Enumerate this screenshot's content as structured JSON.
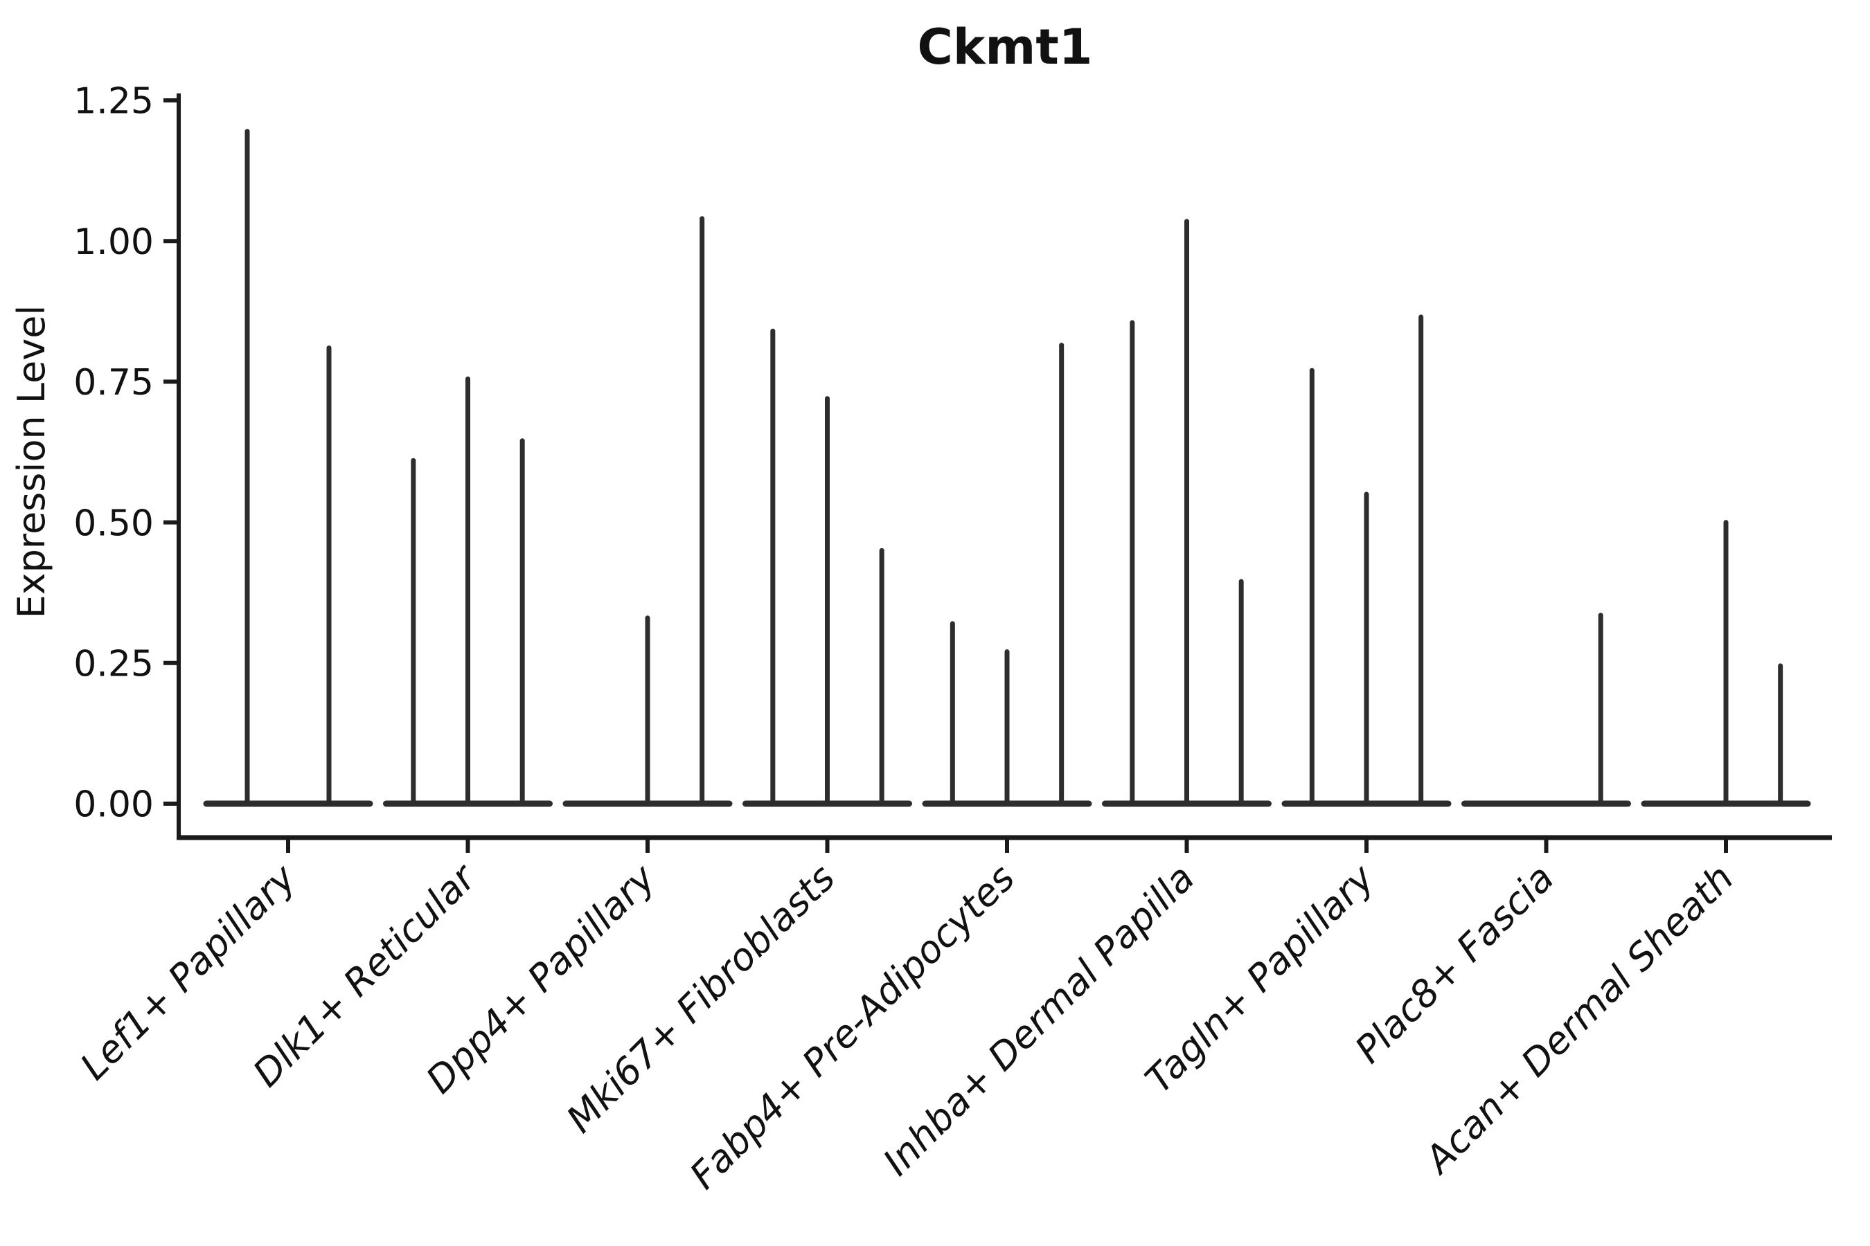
{
  "chart_data": {
    "type": "violin",
    "title": "Ckmt1",
    "ylabel": "Expression Level",
    "xlabel": "",
    "ylim": [
      0,
      1.25
    ],
    "ytick_step": 0.25,
    "yticks": [
      "0.00",
      "0.25",
      "0.50",
      "0.75",
      "1.00",
      "1.25"
    ],
    "grid": false,
    "legend": "none",
    "ink_color": "#1a1a1a",
    "violin_color": "#2d2d2d",
    "categories": [
      "Lef1+ Papillary",
      "Dlk1+ Reticular",
      "Dpp4+ Papillary",
      "Mki67+ Fibroblasts",
      "Fabp4+ Pre-Adipocytes",
      "Inhba+ Dermal Papilla",
      "Tagln+ Papillary",
      "Plac8+ Fascia",
      "Acan+ Dermal Sheath"
    ],
    "violins": [
      {
        "category": "Lef1+ Papillary",
        "slots": 2,
        "peaks": [
          1.195,
          0.81
        ]
      },
      {
        "category": "Dlk1+ Reticular",
        "slots": 3,
        "peaks": [
          0.61,
          0.755,
          0.645
        ]
      },
      {
        "category": "Dpp4+ Papillary",
        "slots": 3,
        "peaks": [
          0,
          0.33,
          1.04
        ]
      },
      {
        "category": "Mki67+ Fibroblasts",
        "slots": 3,
        "peaks": [
          0.84,
          0.72,
          0.45
        ]
      },
      {
        "category": "Fabp4+ Pre-Adipocytes",
        "slots": 3,
        "peaks": [
          0.32,
          0.27,
          0.815
        ]
      },
      {
        "category": "Inhba+ Dermal Papilla",
        "slots": 3,
        "peaks": [
          0.855,
          1.035,
          0.395
        ]
      },
      {
        "category": "Tagln+ Papillary",
        "slots": 3,
        "peaks": [
          0.77,
          0.55,
          0.865
        ]
      },
      {
        "category": "Plac8+ Fascia",
        "slots": 3,
        "peaks": [
          0,
          0,
          0.335
        ]
      },
      {
        "category": "Acan+ Dermal Sheath",
        "slots": 3,
        "peaks": [
          0,
          0.5,
          0.245
        ]
      }
    ]
  }
}
